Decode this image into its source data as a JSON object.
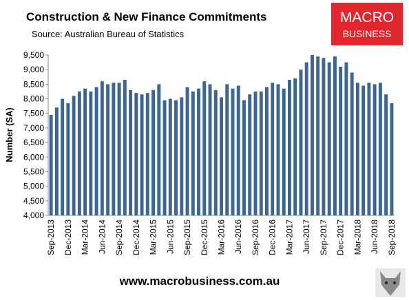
{
  "chart_data": {
    "type": "bar",
    "title": "Construction & New Finance Commitments",
    "subtitle": "Source: Australian Bureau of Statistics",
    "y_label": "Number (SA)",
    "logo": [
      "MACRO",
      "BUSINESS"
    ],
    "footer": "www.macrobusiness.com.au",
    "color": "#3d6591",
    "grid": false,
    "categories": [
      "Sep-2013",
      null,
      null,
      "Dec-2013",
      null,
      null,
      "Mar-2014",
      null,
      null,
      "Jun-2014",
      null,
      null,
      "Sep-2014",
      null,
      null,
      "Dec-2014",
      null,
      null,
      "Mar-2015",
      null,
      null,
      "Jun-2015",
      null,
      null,
      "Sep-2015",
      null,
      null,
      "Dec-2015",
      null,
      null,
      "Mar-2016",
      null,
      null,
      "Jun-2016",
      null,
      null,
      "Sep-2016",
      null,
      null,
      "Dec-2016",
      null,
      null,
      "Mar-2017",
      null,
      null,
      "Jun-2017",
      null,
      null,
      "Sep-2017",
      null,
      null,
      "Dec-2017",
      null,
      null,
      "Mar-2018",
      null,
      null,
      "Jun-2018",
      null,
      null,
      "Sep-2018"
    ],
    "values": [
      7450,
      7700,
      8000,
      7850,
      8100,
      8250,
      8350,
      8250,
      8400,
      8600,
      8500,
      8550,
      8550,
      8650,
      8300,
      8200,
      8150,
      8200,
      8300,
      8500,
      7950,
      8000,
      7950,
      8050,
      8400,
      8250,
      8350,
      8600,
      8500,
      8300,
      8050,
      8500,
      8350,
      8450,
      7950,
      8150,
      8250,
      8250,
      8400,
      8550,
      8500,
      8350,
      8650,
      8700,
      9000,
      9250,
      9500,
      9450,
      9400,
      9250,
      9450,
      9100,
      9250,
      8900,
      8550,
      8450,
      8550,
      8500,
      8550,
      8150,
      7850
    ],
    "ylim": [
      4000,
      9500
    ],
    "yticks": [
      {
        "value": 4000,
        "label": "4,000"
      },
      {
        "value": 4500,
        "label": "4,500"
      },
      {
        "value": 5000,
        "label": "5,000"
      },
      {
        "value": 5500,
        "label": "5,500"
      },
      {
        "value": 6000,
        "label": "6,000"
      },
      {
        "value": 6500,
        "label": "6,500"
      },
      {
        "value": 7000,
        "label": "7,000"
      },
      {
        "value": 7500,
        "label": "7,500"
      },
      {
        "value": 8000,
        "label": "8,000"
      },
      {
        "value": 8500,
        "label": "8,500"
      },
      {
        "value": 9000,
        "label": "9,000"
      },
      {
        "value": 9500,
        "label": "9,500"
      }
    ]
  }
}
